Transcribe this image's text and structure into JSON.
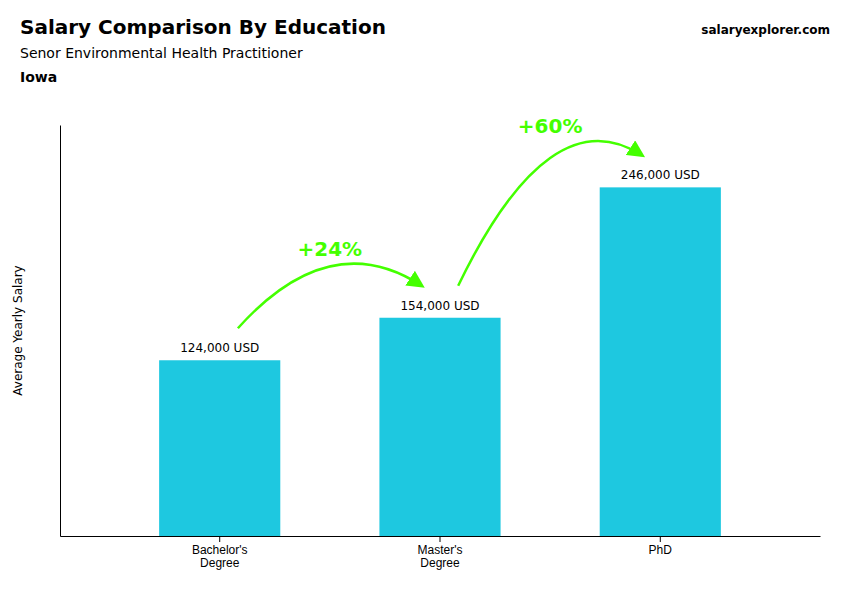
{
  "chart_data": {
    "type": "bar",
    "title": "Salary Comparison By Education",
    "subtitle": "Senor Environmental Health Practitioner",
    "ylabel": "Average Yearly Salary",
    "categories": [
      "Bachelor's\nDegree",
      "Master's\nDegree",
      "PhD"
    ],
    "values": [
      124000,
      154000,
      246000
    ],
    "value_labels": [
      "124,000 USD",
      "154,000 USD",
      "246,000 USD"
    ],
    "data_labels": true,
    "color": "#1ec8e0",
    "ylim": [
      0,
      290000
    ],
    "tick_labels": "x",
    "annotations": [
      {
        "text": "Iowa"
      },
      {
        "text": "salary"
      },
      {
        "text": "explorer"
      },
      {
        "text": ".com"
      },
      {
        "text": "+24%",
        "color": "#44ff00"
      },
      {
        "text": "+60%",
        "color": "#44ff00"
      }
    ]
  }
}
